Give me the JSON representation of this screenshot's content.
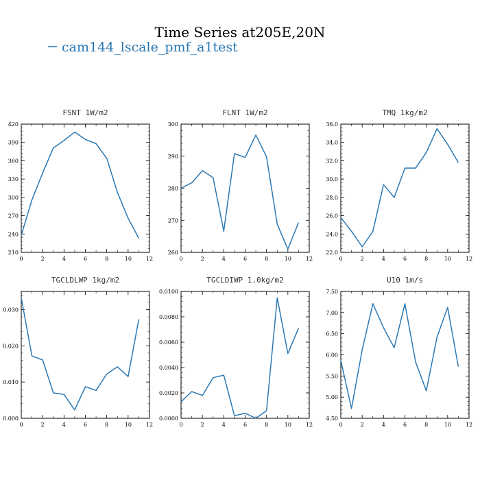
{
  "figure": {
    "title": "Time Series at205E,20N",
    "legend_label": "cam144_lscale_pmf_a1test",
    "line_color": "#2a78b4"
  },
  "chart_data": [
    {
      "type": "line",
      "title": "FSNT   1W/m2",
      "x": [
        0,
        1,
        2,
        3,
        4,
        5,
        6,
        7,
        8,
        9,
        10,
        11
      ],
      "values": [
        238,
        296,
        340,
        381,
        393,
        407,
        395,
        388,
        364,
        308,
        266,
        233
      ],
      "xlim": [
        0,
        12
      ],
      "ylim": [
        210,
        420
      ],
      "xticks": [
        "0",
        "2",
        "4",
        "6",
        "8",
        "10",
        "12"
      ],
      "yticks": [
        "210",
        "240",
        "270",
        "300",
        "330",
        "360",
        "390",
        "420"
      ]
    },
    {
      "type": "line",
      "title": "FLNT   1W/m2",
      "x": [
        0,
        1,
        2,
        3,
        4,
        5,
        6,
        7,
        8,
        9,
        10,
        11
      ],
      "values": [
        280.0,
        281.7,
        285.5,
        283.3,
        266.6,
        290.8,
        289.6,
        296.6,
        289.8,
        268.8,
        261.0,
        269.3
      ],
      "xlim": [
        0,
        12
      ],
      "ylim": [
        260,
        300
      ],
      "xticks": [
        "0",
        "2",
        "4",
        "6",
        "8",
        "10",
        "12"
      ],
      "yticks": [
        "260",
        "270",
        "280",
        "290",
        "300"
      ]
    },
    {
      "type": "line",
      "title": "TMQ   1kg/m2",
      "x": [
        0,
        1,
        2,
        3,
        4,
        5,
        6,
        7,
        8,
        9,
        10,
        11
      ],
      "values": [
        25.8,
        24.3,
        22.6,
        24.3,
        29.4,
        28.0,
        31.2,
        31.2,
        32.9,
        35.5,
        33.8,
        31.8
      ],
      "xlim": [
        0,
        12
      ],
      "ylim": [
        22,
        36
      ],
      "xticks": [
        "0",
        "2",
        "4",
        "6",
        "8",
        "10",
        "12"
      ],
      "yticks": [
        "22.0",
        "24.0",
        "26.0",
        "28.0",
        "30.0",
        "32.0",
        "34.0",
        "36.0"
      ]
    },
    {
      "type": "line",
      "title": "TGCLDLWP   1kg/m2",
      "x": [
        0,
        1,
        2,
        3,
        4,
        5,
        6,
        7,
        8,
        9,
        10,
        11
      ],
      "values": [
        0.0332,
        0.0172,
        0.0161,
        0.007,
        0.0066,
        0.0023,
        0.0087,
        0.0077,
        0.0122,
        0.0142,
        0.0115,
        0.0273
      ],
      "xlim": [
        0,
        12
      ],
      "ylim": [
        0,
        0.035
      ],
      "xticks": [
        "0",
        "2",
        "4",
        "6",
        "8",
        "10",
        "12"
      ],
      "yticks": [
        "0.000",
        "0.010",
        "0.020",
        "0.030"
      ],
      "yticks_values": [
        0,
        0.01,
        0.02,
        0.03
      ]
    },
    {
      "type": "line",
      "title": "TGCLDIWP   1.0kg/m2",
      "x": [
        0,
        1,
        2,
        3,
        4,
        5,
        6,
        7,
        8,
        9,
        10,
        11
      ],
      "values": [
        0.0013,
        0.0021,
        0.0018,
        0.0032,
        0.0034,
        0.0002,
        0.0004,
        0.0,
        0.0006,
        0.0095,
        0.0051,
        0.0071
      ],
      "xlim": [
        0,
        12
      ],
      "ylim": [
        0,
        0.01
      ],
      "xticks": [
        "0",
        "2",
        "4",
        "6",
        "8",
        "10",
        "12"
      ],
      "yticks": [
        "0.0000",
        "0.0020",
        "0.0040",
        "0.0060",
        "0.0080",
        "0.0100"
      ]
    },
    {
      "type": "line",
      "title": "U10   1m/s",
      "x": [
        0,
        1,
        2,
        3,
        4,
        5,
        6,
        7,
        8,
        9,
        10,
        11
      ],
      "values": [
        5.87,
        4.73,
        6.12,
        7.21,
        6.64,
        6.17,
        7.21,
        5.83,
        5.15,
        6.42,
        7.12,
        5.72
      ],
      "xlim": [
        0,
        12
      ],
      "ylim": [
        4.5,
        7.5
      ],
      "xticks": [
        "0",
        "2",
        "4",
        "6",
        "8",
        "10",
        "12"
      ],
      "yticks": [
        "4.50",
        "5.00",
        "5.50",
        "6.00",
        "6.50",
        "7.00",
        "7.50"
      ]
    }
  ]
}
